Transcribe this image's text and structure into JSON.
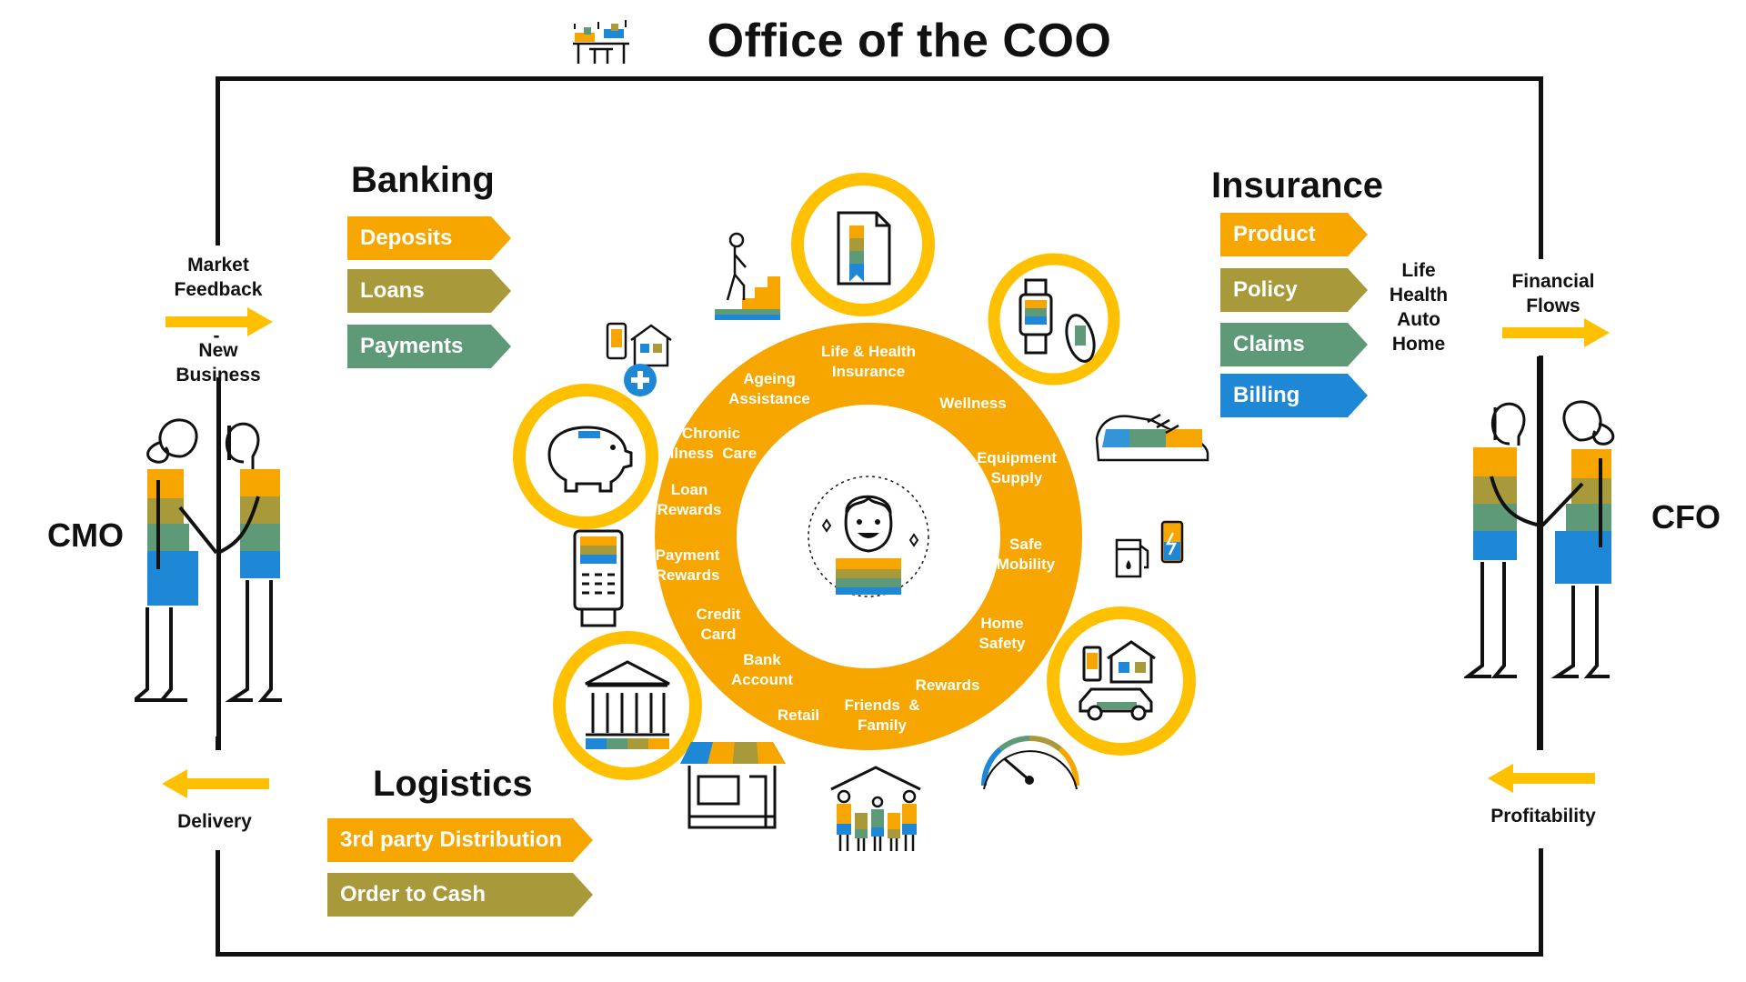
{
  "title": "Office of the COO",
  "banking": {
    "heading": "Banking",
    "items": [
      {
        "label": "Deposits",
        "color": "#F7A600"
      },
      {
        "label": "Loans",
        "color": "#A89A3B"
      },
      {
        "label": "Payments",
        "color": "#5E9A78"
      }
    ]
  },
  "insurance": {
    "heading": "Insurance",
    "items": [
      {
        "label": "Product",
        "color": "#F7A600"
      },
      {
        "label": "Policy",
        "color": "#A89A3B"
      },
      {
        "label": "Claims",
        "color": "#5E9A78"
      },
      {
        "label": "Billing",
        "color": "#1E88D6"
      }
    ],
    "sublist": [
      "Life",
      "Health",
      "Auto",
      "Home"
    ]
  },
  "logistics": {
    "heading": "Logistics",
    "items": [
      {
        "label": "3rd party Distribution",
        "color": "#F7A600"
      },
      {
        "label": "Order to Cash",
        "color": "#A89A3B"
      }
    ]
  },
  "left": {
    "role": "CMO",
    "arrow_in_top": "Market",
    "arrow_in_bottom": "Feedback",
    "separator": "-",
    "new_business_1": "New",
    "new_business_2": "Business",
    "delivery": "Delivery"
  },
  "right": {
    "role": "CFO",
    "flows_1": "Financial",
    "flows_2": "Flows",
    "profitability": "Profitability"
  },
  "ring": {
    "labels": [
      {
        "text": "Life & Health\nInsurance"
      },
      {
        "text": "Wellness"
      },
      {
        "text": "Equipment\nSupply"
      },
      {
        "text": "Safe\nMobility"
      },
      {
        "text": "Home\nSafety"
      },
      {
        "text": "Rewards"
      },
      {
        "text": "Friends  &\nFamily"
      },
      {
        "text": "Retail"
      },
      {
        "text": "Bank\nAccount"
      },
      {
        "text": "Credit\nCard"
      },
      {
        "text": "Payment\nRewards"
      },
      {
        "text": "Loan\nRewards"
      },
      {
        "text": "Chronic\nIllness  Care"
      },
      {
        "text": "Ageing\nAssistance"
      }
    ]
  },
  "colors": {
    "orange": "#F7A600",
    "olive": "#A89A3B",
    "green": "#5E9A78",
    "blue": "#1E88D6",
    "ring": "#F7A600",
    "circle": "#FFC000"
  },
  "icons": [
    "office-desk-icon",
    "stairs-climber-icon",
    "document-bookmark-icon",
    "smartwatch-icon",
    "sneaker-icon",
    "fuel-battery-icon",
    "home-car-icon",
    "gauge-icon",
    "family-house-icon",
    "shop-icon",
    "bank-building-icon",
    "pos-terminal-icon",
    "piggy-bank-icon",
    "phone-home-health-icon",
    "customer-avatar-icon"
  ]
}
